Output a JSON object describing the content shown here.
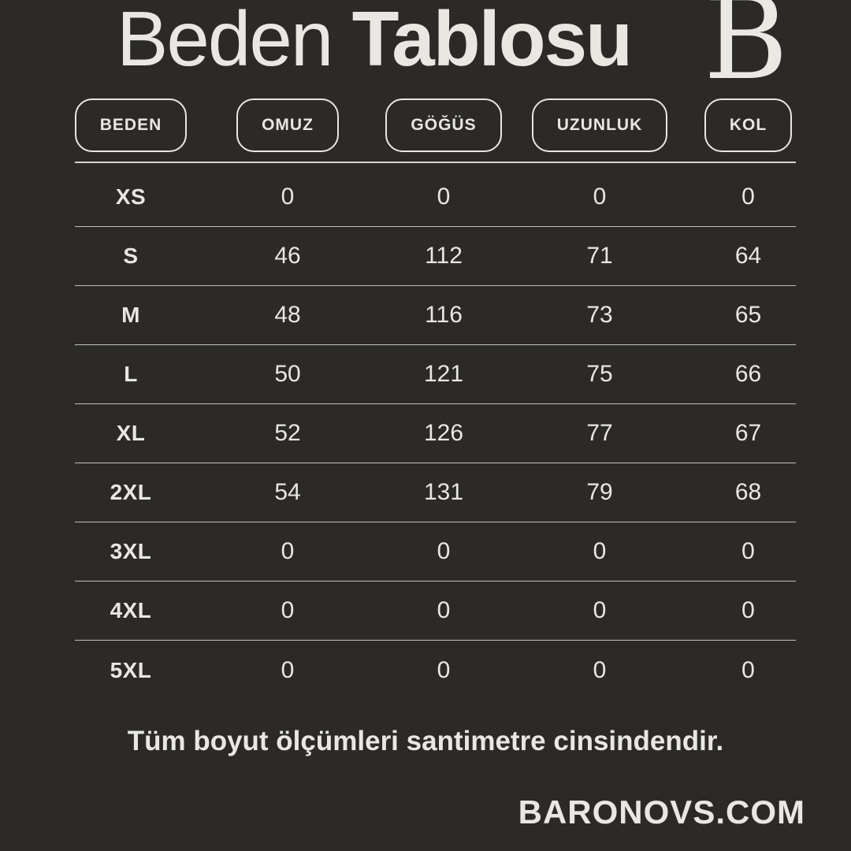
{
  "colors": {
    "background": "#2b2a28",
    "text": "#e9e7e1",
    "line": "#d7d5ce"
  },
  "header": {
    "title_regular": "Beden",
    "title_bold": "Tablosu",
    "logo_letter": "B"
  },
  "chart_data": {
    "type": "table",
    "title": "Beden Tablosu",
    "columns": [
      "BEDEN",
      "OMUZ",
      "GÖĞÜS",
      "UZUNLUK",
      "KOL"
    ],
    "rows": [
      {
        "size": "XS",
        "values": [
          0,
          0,
          0,
          0
        ]
      },
      {
        "size": "S",
        "values": [
          46,
          112,
          71,
          64
        ]
      },
      {
        "size": "M",
        "values": [
          48,
          116,
          73,
          65
        ]
      },
      {
        "size": "L",
        "values": [
          50,
          121,
          75,
          66
        ]
      },
      {
        "size": "XL",
        "values": [
          52,
          126,
          77,
          67
        ]
      },
      {
        "size": "2XL",
        "values": [
          54,
          131,
          79,
          68
        ]
      },
      {
        "size": "3XL",
        "values": [
          0,
          0,
          0,
          0
        ]
      },
      {
        "size": "4XL",
        "values": [
          0,
          0,
          0,
          0
        ]
      },
      {
        "size": "5XL",
        "values": [
          0,
          0,
          0,
          0
        ]
      }
    ]
  },
  "footer": {
    "note": "Tüm boyut ölçümleri santimetre cinsindendir.",
    "brand": "BARONOVS.COM"
  }
}
